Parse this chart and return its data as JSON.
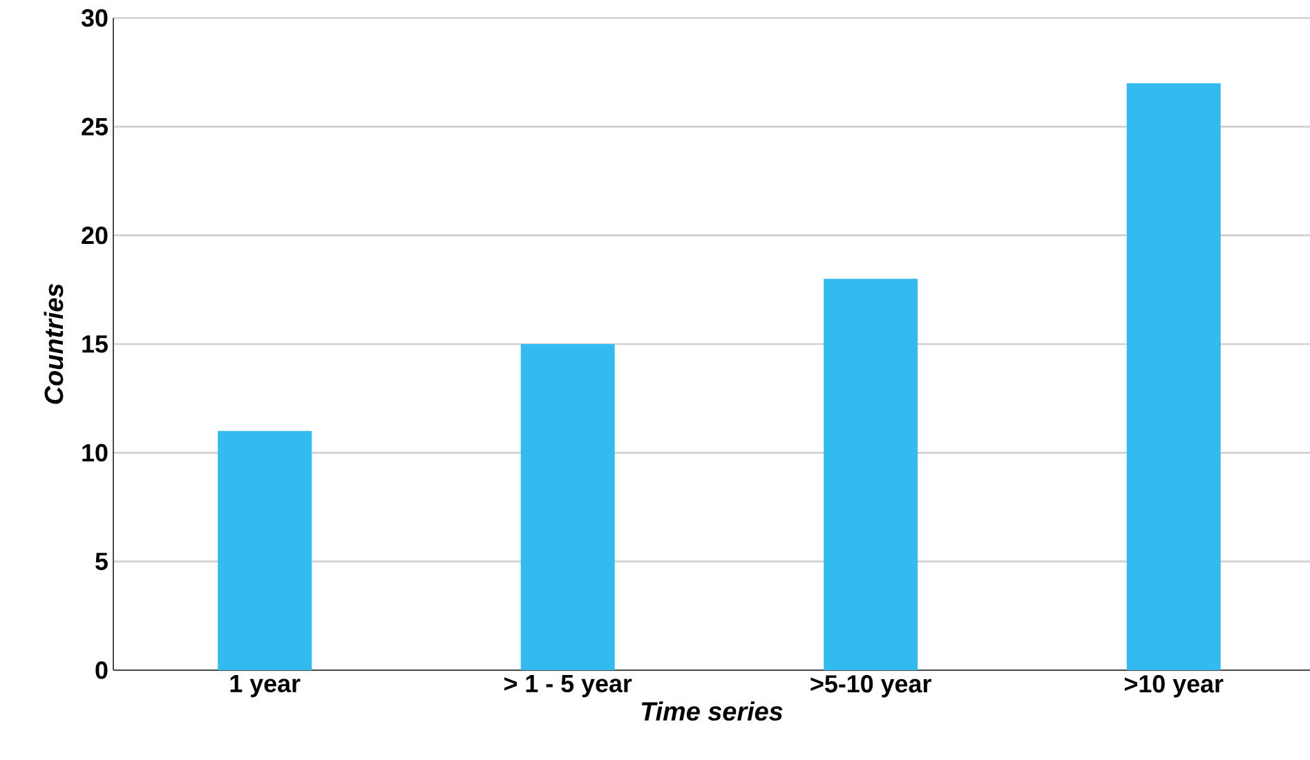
{
  "chart_data": {
    "type": "bar",
    "xlabel": "Time series",
    "ylabel": "Countries",
    "categories": [
      "1 year",
      "> 1 - 5 year",
      ">5-10 year",
      ">10 year"
    ],
    "values": [
      11,
      15,
      18,
      27
    ],
    "color": "#33bbf0",
    "ylim": [
      0,
      30
    ],
    "yticks": [
      0,
      5,
      10,
      15,
      20,
      25,
      30
    ],
    "grid": "y"
  }
}
